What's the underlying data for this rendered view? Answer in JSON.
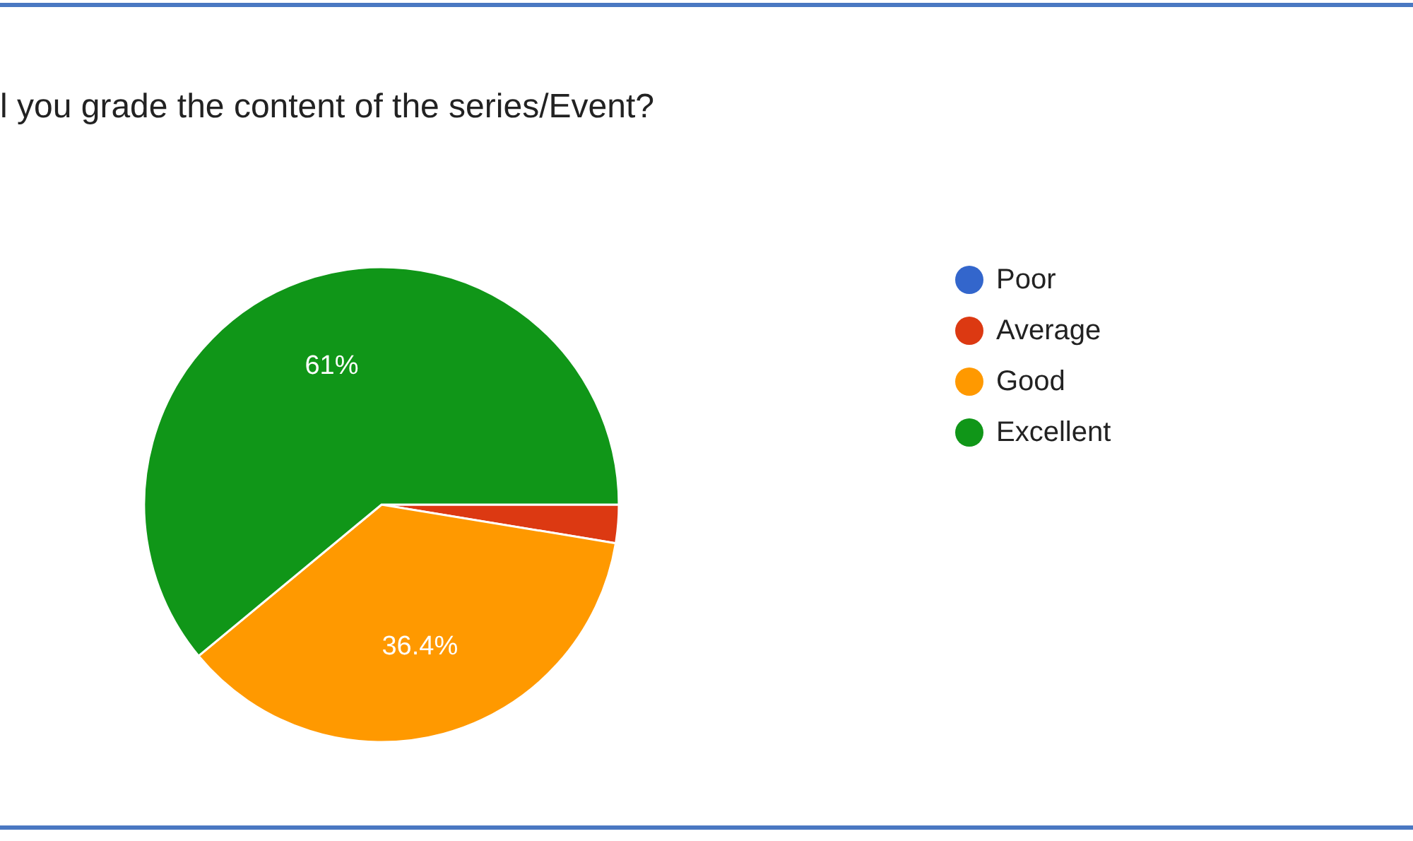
{
  "chart_data": {
    "type": "pie",
    "title": "l you grade the content of the series/Event?",
    "categories": [
      "Poor",
      "Average",
      "Good",
      "Excellent"
    ],
    "values": [
      0,
      2.6,
      36.4,
      61
    ],
    "colors": [
      "#3366cc",
      "#dc3912",
      "#ff9900",
      "#109618"
    ],
    "value_labels": [
      null,
      null,
      "36.4%",
      "61%"
    ],
    "legend": "right"
  }
}
